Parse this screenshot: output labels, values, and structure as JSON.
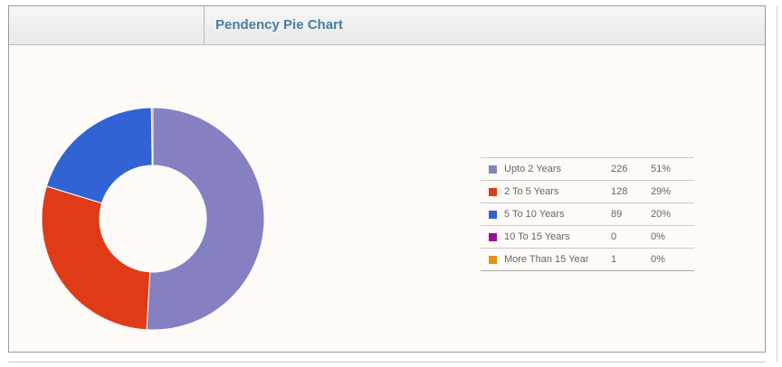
{
  "panel": {
    "title": "Pendency Pie Chart"
  },
  "chart_data": {
    "type": "pie",
    "donut": true,
    "legend_position": "right",
    "slices": [
      {
        "label": "Upto 2 Years",
        "value": 226,
        "percent": "51%",
        "color": "#8480c1"
      },
      {
        "label": "2 To 5 Years",
        "value": 128,
        "percent": "29%",
        "color": "#de3b16"
      },
      {
        "label": "5 To 10 Years",
        "value": 89,
        "percent": "20%",
        "color": "#3163d4"
      },
      {
        "label": "10 To 15 Years",
        "value": 0,
        "percent": "0%",
        "color": "#9a0a9c"
      },
      {
        "label": "More Than 15 Year",
        "value": 1,
        "percent": "0%",
        "color": "#e68f12"
      }
    ]
  }
}
